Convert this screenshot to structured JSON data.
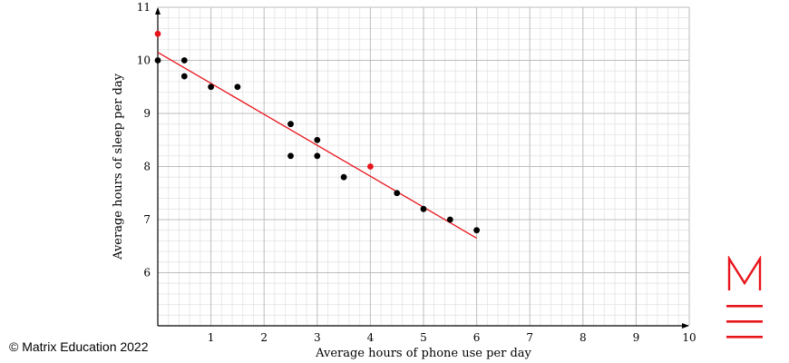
{
  "chart_data": {
    "type": "scatter",
    "xlabel": "Average hours of phone use per day",
    "ylabel": "Average hours of sleep per day",
    "xlim": [
      0,
      10
    ],
    "ylim": [
      5,
      11
    ],
    "x_ticks": [
      1,
      2,
      3,
      4,
      5,
      6,
      7,
      8,
      9,
      10
    ],
    "y_ticks": [
      6,
      7,
      8,
      9,
      10,
      11
    ],
    "grid": true,
    "series": [
      {
        "color": "#000000",
        "points": [
          {
            "x": 0,
            "y": 10
          },
          {
            "x": 0.5,
            "y": 10
          },
          {
            "x": 0.5,
            "y": 9.7
          },
          {
            "x": 1,
            "y": 9.5
          },
          {
            "x": 1.5,
            "y": 9.5
          },
          {
            "x": 2.5,
            "y": 8.8
          },
          {
            "x": 2.5,
            "y": 8.2
          },
          {
            "x": 3,
            "y": 8.5
          },
          {
            "x": 3,
            "y": 8.2
          },
          {
            "x": 3.5,
            "y": 7.8
          },
          {
            "x": 4.5,
            "y": 7.5
          },
          {
            "x": 5,
            "y": 7.2
          },
          {
            "x": 5.5,
            "y": 7
          },
          {
            "x": 6,
            "y": 6.8
          }
        ]
      },
      {
        "color": "#e8141b",
        "points": [
          {
            "x": 0,
            "y": 10.5
          },
          {
            "x": 4,
            "y": 8
          }
        ]
      }
    ],
    "trend_line": {
      "color": "#e8141b",
      "from": {
        "x": 0,
        "y": 10.15
      },
      "to": {
        "x": 6,
        "y": 6.65
      }
    }
  },
  "copyright": "© Matrix Education 2022",
  "logo": {
    "color": "#e8141b"
  }
}
